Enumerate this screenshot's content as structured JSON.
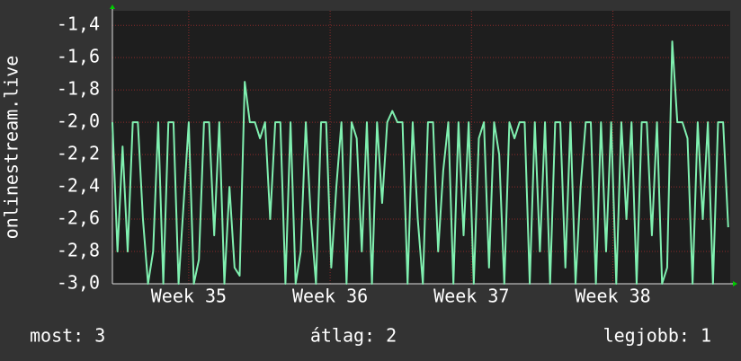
{
  "chart_data": {
    "type": "line",
    "ylabel": "onlinestream.live",
    "x": [
      34.46,
      34.496,
      34.532,
      34.568,
      34.604,
      34.64,
      34.676,
      34.712,
      34.748,
      34.784,
      34.82,
      34.856,
      34.892,
      34.928,
      34.964,
      35.0,
      35.036,
      35.072,
      35.108,
      35.144,
      35.18,
      35.216,
      35.252,
      35.288,
      35.324,
      35.36,
      35.396,
      35.432,
      35.468,
      35.504,
      35.54,
      35.576,
      35.612,
      35.648,
      35.684,
      35.72,
      35.756,
      35.792,
      35.828,
      35.864,
      35.9,
      35.936,
      35.972,
      36.008,
      36.044,
      36.08,
      36.116,
      36.152,
      36.188,
      36.224,
      36.26,
      36.296,
      36.332,
      36.368,
      36.404,
      36.44,
      36.476,
      36.512,
      36.548,
      36.584,
      36.62,
      36.656,
      36.692,
      36.728,
      36.764,
      36.8,
      36.836,
      36.872,
      36.908,
      36.944,
      36.98,
      37.016,
      37.052,
      37.088,
      37.124,
      37.16,
      37.196,
      37.232,
      37.268,
      37.304,
      37.34,
      37.376,
      37.412,
      37.448,
      37.484,
      37.52,
      37.556,
      37.592,
      37.628,
      37.664,
      37.7,
      37.736,
      37.772,
      37.808,
      37.844,
      37.88,
      37.916,
      37.952,
      37.988,
      38.024,
      38.06,
      38.096,
      38.132,
      38.168,
      38.204,
      38.24,
      38.276,
      38.312,
      38.348,
      38.384,
      38.42,
      38.456,
      38.492,
      38.528,
      38.564,
      38.6,
      38.636,
      38.672,
      38.708,
      38.744,
      38.78,
      38.816
    ],
    "values": [
      -2.0,
      -2.8,
      -2.15,
      -2.8,
      -2.0,
      -2.0,
      -2.6,
      -3.0,
      -2.8,
      -2.0,
      -3.0,
      -2.0,
      -2.0,
      -3.0,
      -2.5,
      -2.0,
      -3.0,
      -2.85,
      -2.0,
      -2.0,
      -2.7,
      -2.0,
      -3.0,
      -2.4,
      -2.9,
      -2.95,
      -1.75,
      -2.0,
      -2.0,
      -2.1,
      -2.0,
      -2.6,
      -2.0,
      -2.0,
      -3.0,
      -2.0,
      -3.0,
      -2.8,
      -2.0,
      -2.6,
      -3.0,
      -2.0,
      -2.0,
      -2.9,
      -2.4,
      -2.0,
      -3.0,
      -2.0,
      -2.1,
      -2.8,
      -2.0,
      -3.0,
      -2.0,
      -2.5,
      -2.0,
      -1.93,
      -2.0,
      -2.0,
      -3.0,
      -2.0,
      -2.6,
      -3.0,
      -2.0,
      -2.0,
      -2.8,
      -2.3,
      -2.0,
      -3.0,
      -2.0,
      -2.7,
      -2.0,
      -3.0,
      -2.1,
      -2.0,
      -2.9,
      -2.0,
      -2.2,
      -3.0,
      -2.0,
      -2.1,
      -2.0,
      -2.0,
      -3.0,
      -2.0,
      -2.8,
      -2.0,
      -3.0,
      -2.0,
      -2.0,
      -2.9,
      -2.0,
      -3.0,
      -2.4,
      -2.0,
      -2.0,
      -3.0,
      -2.0,
      -2.8,
      -2.0,
      -3.0,
      -2.0,
      -2.6,
      -2.0,
      -3.0,
      -2.0,
      -2.0,
      -2.7,
      -2.0,
      -3.0,
      -2.9,
      -1.5,
      -2.0,
      -2.0,
      -2.1,
      -3.0,
      -2.0,
      -2.6,
      -2.0,
      -3.0,
      -2.0,
      -2.0,
      -2.65
    ],
    "color": "#80f0b0",
    "xlim": [
      34.46,
      38.83
    ],
    "xticks": [
      {
        "value": 35,
        "label": "Week 35"
      },
      {
        "value": 36,
        "label": "Week 36"
      },
      {
        "value": 37,
        "label": "Week 37"
      },
      {
        "value": 38,
        "label": "Week 38"
      }
    ],
    "ylim": [
      -3.0,
      -1.31
    ],
    "yticks": [
      {
        "value": -3.0,
        "label": "-3,0"
      },
      {
        "value": -2.8,
        "label": "-2,8"
      },
      {
        "value": -2.6,
        "label": "-2,6"
      },
      {
        "value": -2.4,
        "label": "-2,4"
      },
      {
        "value": -2.2,
        "label": "-2,2"
      },
      {
        "value": -2.0,
        "label": "-2,0"
      },
      {
        "value": -1.8,
        "label": "-1,8"
      },
      {
        "value": -1.6,
        "label": "-1,6"
      },
      {
        "value": -1.4,
        "label": "-1,4"
      }
    ],
    "grid": true,
    "annotations": [
      "most: 3",
      "átlag: 2",
      "legjobb: 1"
    ]
  }
}
